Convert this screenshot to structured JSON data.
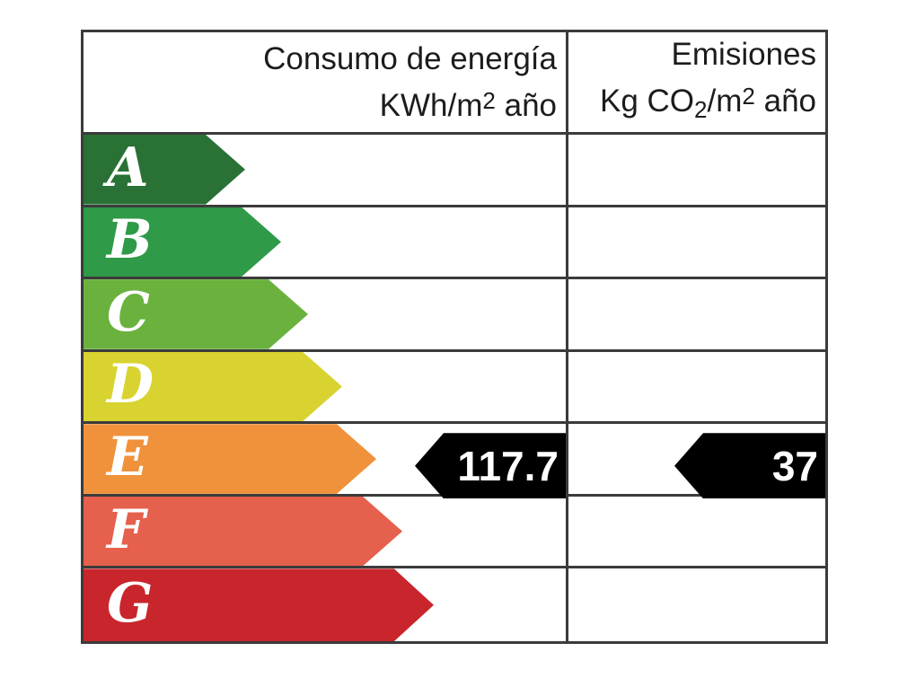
{
  "header": {
    "col1": {
      "line1": "Consumo de energía",
      "line2": {
        "pre": "KWh/m",
        "sup": "2",
        "post": " año"
      }
    },
    "col2": {
      "line1": "Emisiones",
      "line2": {
        "pre": "Kg CO",
        "sub": "2",
        "mid": "/m",
        "sup": "2",
        "post": " año"
      }
    }
  },
  "chart_data": {
    "type": "table",
    "columns": [
      "Consumo de energía KWh/m2 año",
      "Emisiones Kg CO2/m2 año"
    ],
    "rating_scale": [
      {
        "letter": "A",
        "color": "#2a7135"
      },
      {
        "letter": "B",
        "color": "#2f9a47"
      },
      {
        "letter": "C",
        "color": "#6ab23d"
      },
      {
        "letter": "D",
        "color": "#d8d330"
      },
      {
        "letter": "E",
        "color": "#f0913b"
      },
      {
        "letter": "F",
        "color": "#e5604d"
      },
      {
        "letter": "G",
        "color": "#c8262c"
      }
    ],
    "values": [
      {
        "column": "Consumo de energía KWh/m2 año",
        "value": 117.7,
        "rating": "E"
      },
      {
        "column": "Emisiones Kg CO2/m2 año",
        "value": 37,
        "rating": "E"
      }
    ],
    "value_arrow_color": "#000000",
    "grid_color": "#3b3b3b"
  }
}
